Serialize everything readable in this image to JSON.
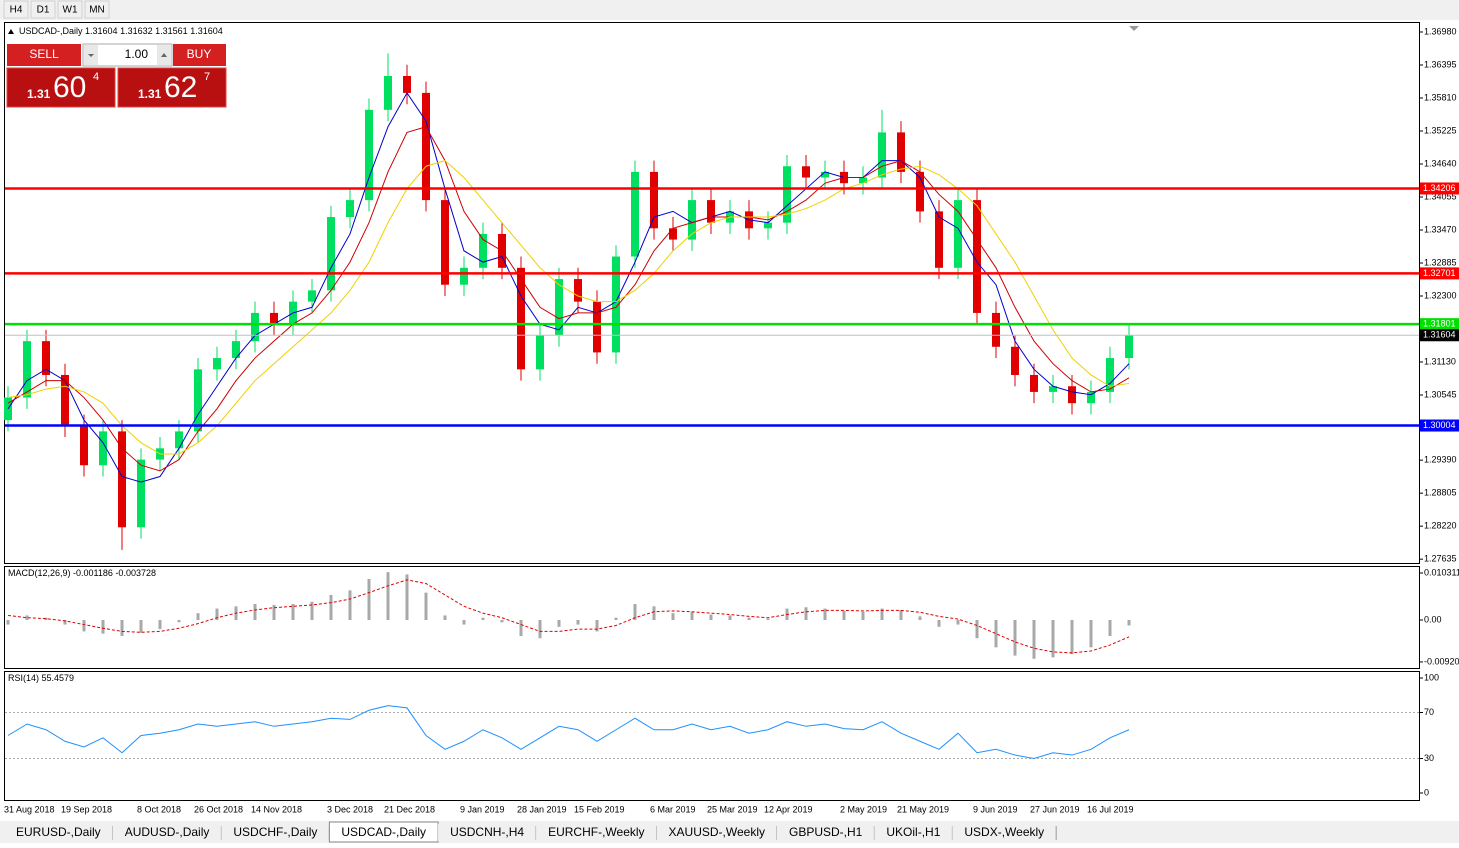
{
  "toolbar": {
    "timeframes": [
      "H4",
      "D1",
      "W1",
      "MN"
    ]
  },
  "trade_panel": {
    "sell": "SELL",
    "lot": "1.00",
    "buy": "BUY",
    "sell_price": {
      "big": "1.31",
      "pips": "60",
      "point": "4"
    },
    "buy_price": {
      "big": "1.31",
      "pips": "62",
      "point": "7"
    }
  },
  "chart_data": [
    {
      "type": "candlestick",
      "title": "USDCAD-,Daily",
      "ohlc_header": [
        1.31604,
        1.31632,
        1.31561,
        1.31604
      ],
      "categories": [
        "31 Aug 2018",
        null,
        null,
        "19 Sep 2018",
        null,
        null,
        null,
        "8 Oct 2018",
        null,
        null,
        "26 Oct 2018",
        null,
        null,
        "14 Nov 2018",
        null,
        null,
        null,
        "3 Dec 2018",
        null,
        null,
        "21 Dec 2018",
        null,
        null,
        null,
        "9 Jan 2019",
        null,
        null,
        "28 Jan 2019",
        null,
        null,
        "15 Feb 2019",
        null,
        null,
        null,
        "6 Mar 2019",
        null,
        null,
        "25 Mar 2019",
        null,
        null,
        "12 Apr 2019",
        null,
        null,
        null,
        "2 May 2019",
        null,
        null,
        "21 May 2019",
        null,
        null,
        null,
        "9 Jun 2019",
        null,
        null,
        "27 Jun 2019",
        null,
        null,
        "16 Jul 2019",
        null,
        null
      ],
      "open": [
        1.301,
        1.305,
        1.315,
        1.309,
        1.3,
        1.293,
        1.299,
        1.282,
        1.294,
        1.296,
        1.299,
        1.31,
        1.312,
        1.315,
        1.32,
        1.318,
        1.322,
        1.324,
        1.337,
        1.34,
        1.356,
        1.362,
        1.359,
        1.34,
        1.325,
        1.328,
        1.334,
        1.328,
        1.31,
        1.316,
        1.326,
        1.322,
        1.313,
        1.33,
        1.345,
        1.335,
        1.333,
        1.34,
        1.336,
        1.338,
        1.335,
        1.336,
        1.346,
        1.344,
        1.345,
        1.343,
        1.344,
        1.352,
        1.345,
        1.338,
        1.328,
        1.34,
        1.32,
        1.314,
        1.309,
        1.306,
        1.307,
        1.304,
        1.306,
        1.312
      ],
      "high": [
        1.307,
        1.317,
        1.317,
        1.311,
        1.302,
        1.301,
        1.301,
        1.296,
        1.298,
        1.301,
        1.312,
        1.314,
        1.317,
        1.322,
        1.322,
        1.324,
        1.326,
        1.339,
        1.342,
        1.358,
        1.366,
        1.364,
        1.361,
        1.342,
        1.33,
        1.336,
        1.336,
        1.33,
        1.318,
        1.328,
        1.328,
        1.324,
        1.332,
        1.347,
        1.347,
        1.337,
        1.342,
        1.342,
        1.34,
        1.34,
        1.338,
        1.348,
        1.348,
        1.347,
        1.347,
        1.346,
        1.356,
        1.354,
        1.347,
        1.34,
        1.342,
        1.342,
        1.322,
        1.316,
        1.311,
        1.309,
        1.309,
        1.308,
        1.314,
        1.318
      ],
      "low": [
        1.299,
        1.303,
        1.307,
        1.298,
        1.291,
        1.291,
        1.278,
        1.28,
        1.292,
        1.294,
        1.297,
        1.308,
        1.31,
        1.313,
        1.316,
        1.316,
        1.32,
        1.322,
        1.335,
        1.338,
        1.354,
        1.357,
        1.338,
        1.323,
        1.323,
        1.326,
        1.326,
        1.308,
        1.308,
        1.314,
        1.32,
        1.311,
        1.311,
        1.328,
        1.333,
        1.331,
        1.331,
        1.334,
        1.334,
        1.333,
        1.333,
        1.334,
        1.342,
        1.342,
        1.341,
        1.341,
        1.342,
        1.343,
        1.336,
        1.326,
        1.326,
        1.318,
        1.312,
        1.307,
        1.304,
        1.304,
        1.302,
        1.302,
        1.304,
        1.31
      ],
      "close": [
        1.305,
        1.315,
        1.309,
        1.3,
        1.293,
        1.299,
        1.282,
        1.294,
        1.296,
        1.299,
        1.31,
        1.312,
        1.315,
        1.32,
        1.318,
        1.322,
        1.324,
        1.337,
        1.34,
        1.356,
        1.362,
        1.359,
        1.34,
        1.325,
        1.328,
        1.334,
        1.328,
        1.31,
        1.316,
        1.326,
        1.322,
        1.313,
        1.33,
        1.345,
        1.335,
        1.333,
        1.34,
        1.336,
        1.338,
        1.335,
        1.336,
        1.346,
        1.344,
        1.345,
        1.343,
        1.344,
        1.352,
        1.345,
        1.338,
        1.328,
        1.34,
        1.32,
        1.314,
        1.309,
        1.306,
        1.307,
        1.304,
        1.306,
        1.312,
        1.316
      ],
      "up_color": "#00e060",
      "down_color": "#e00000",
      "lines": [
        {
          "color": "#0000cd",
          "values": [
            1.303,
            1.308,
            1.31,
            1.308,
            1.301,
            1.297,
            1.291,
            1.29,
            1.291,
            1.296,
            1.302,
            1.307,
            1.312,
            1.316,
            1.318,
            1.32,
            1.321,
            1.328,
            1.334,
            1.344,
            1.353,
            1.359,
            1.354,
            1.342,
            1.331,
            1.329,
            1.33,
            1.323,
            1.318,
            1.317,
            1.321,
            1.32,
            1.322,
            1.329,
            1.337,
            1.338,
            1.336,
            1.337,
            1.338,
            1.3365,
            1.336,
            1.339,
            1.342,
            1.345,
            1.344,
            1.344,
            1.347,
            1.347,
            1.344,
            1.337,
            1.335,
            1.329,
            1.325,
            1.315,
            1.31,
            1.307,
            1.306,
            1.3055,
            1.3075,
            1.311
          ]
        },
        {
          "color": "#cc0000",
          "values": [
            1.304,
            1.306,
            1.308,
            1.308,
            1.305,
            1.301,
            1.296,
            1.293,
            1.292,
            1.294,
            1.299,
            1.303,
            1.308,
            1.312,
            1.315,
            1.318,
            1.32,
            1.324,
            1.329,
            1.336,
            1.345,
            1.352,
            1.353,
            1.347,
            1.338,
            1.333,
            1.331,
            1.326,
            1.321,
            1.319,
            1.32,
            1.32,
            1.321,
            1.325,
            1.331,
            1.335,
            1.336,
            1.337,
            1.337,
            1.337,
            1.3365,
            1.338,
            1.34,
            1.343,
            1.344,
            1.344,
            1.346,
            1.347,
            1.345,
            1.341,
            1.338,
            1.333,
            1.328,
            1.321,
            1.315,
            1.311,
            1.308,
            1.306,
            1.3065,
            1.3085
          ]
        },
        {
          "color": "#f0d000",
          "values": [
            1.305,
            1.3055,
            1.3065,
            1.307,
            1.306,
            1.304,
            1.3,
            1.297,
            1.295,
            1.295,
            1.297,
            1.3,
            1.304,
            1.308,
            1.311,
            1.314,
            1.317,
            1.32,
            1.324,
            1.329,
            1.336,
            1.342,
            1.346,
            1.347,
            1.344,
            1.34,
            1.336,
            1.332,
            1.328,
            1.325,
            1.323,
            1.322,
            1.322,
            1.324,
            1.327,
            1.331,
            1.334,
            1.336,
            1.337,
            1.337,
            1.337,
            1.3375,
            1.3385,
            1.34,
            1.342,
            1.343,
            1.3445,
            1.3455,
            1.346,
            1.3445,
            1.342,
            1.339,
            1.334,
            1.329,
            1.323,
            1.317,
            1.312,
            1.309,
            1.307,
            1.3075
          ]
        }
      ],
      "levels": [
        {
          "value": 1.34206,
          "color": "#ff0000"
        },
        {
          "value": 1.32701,
          "color": "#ff0000"
        },
        {
          "value": 1.31801,
          "color": "#00e000"
        },
        {
          "value": 1.30004,
          "color": "#0000ff"
        }
      ],
      "bid": 1.31604,
      "ylim": [
        1.27567,
        1.37157
      ],
      "yticks": [
        {
          "value": 1.3698,
          "label": "1.36980"
        },
        1.36395,
        {
          "value": 1.3581,
          "label": "1.35810"
        },
        1.35225,
        {
          "value": 1.3464,
          "label": "1.34640"
        },
        1.34055,
        {
          "value": 1.3347,
          "label": "1.33470"
        },
        1.32885,
        {
          "value": 1.323,
          "label": "1.32300"
        },
        {
          "value": 1.3113,
          "label": "1.31130"
        },
        1.30545,
        {
          "value": 1.2939,
          "label": "1.29390"
        },
        1.28805,
        {
          "value": 1.2822,
          "label": "1.28220"
        },
        1.27635
      ]
    },
    {
      "type": "macd",
      "title": "MACD(12,26,9)",
      "readout": [
        -0.001186,
        -0.003728
      ],
      "histogram": [
        -0.001,
        0.001,
        0.0005,
        -0.001,
        -0.0025,
        -0.003,
        -0.0035,
        -0.0028,
        -0.002,
        -0.0005,
        0.0015,
        0.0025,
        0.003,
        0.0035,
        0.0033,
        0.0035,
        0.004,
        0.0055,
        0.0065,
        0.009,
        0.0105,
        0.01,
        0.006,
        0.001,
        -0.001,
        0.0005,
        -0.0005,
        -0.0035,
        -0.004,
        -0.0015,
        -0.001,
        -0.0025,
        0.0005,
        0.0035,
        0.003,
        0.0015,
        0.0018,
        0.0012,
        0.001,
        0.0005,
        0.0003,
        0.0025,
        0.0028,
        0.0025,
        0.002,
        0.0018,
        0.0025,
        0.0022,
        0.0008,
        -0.0015,
        -0.001,
        -0.004,
        -0.006,
        -0.0078,
        -0.0085,
        -0.0082,
        -0.0075,
        -0.006,
        -0.0035,
        -0.0012
      ],
      "signal": [
        0.001,
        0.0005,
        0.0003,
        -0.0002,
        -0.001,
        -0.0018,
        -0.0025,
        -0.0027,
        -0.0025,
        -0.0018,
        -0.0008,
        0.0005,
        0.0015,
        0.0022,
        0.0027,
        0.003,
        0.0033,
        0.0038,
        0.0046,
        0.006,
        0.0075,
        0.0088,
        0.008,
        0.0055,
        0.003,
        0.0015,
        0.0005,
        -0.001,
        -0.0025,
        -0.0025,
        -0.002,
        -0.002,
        -0.0012,
        0.0005,
        0.0018,
        0.002,
        0.0018,
        0.0015,
        0.0012,
        0.0008,
        0.0005,
        0.0012,
        0.0018,
        0.0021,
        0.0021,
        0.002,
        0.0021,
        0.0021,
        0.0017,
        0.0008,
        0.0002,
        -0.0012,
        -0.003,
        -0.0048,
        -0.0062,
        -0.007,
        -0.0072,
        -0.0068,
        -0.0055,
        -0.0037
      ],
      "histogram_color": "#a8a8a8",
      "signal_color": "#e00000",
      "ylim": [
        -0.01053,
        0.011847
      ],
      "yticks": [
        0.010311,
        {
          "value": 0,
          "label": "0.00"
        },
        {
          "value": -0.0092,
          "label": "-0.00920"
        }
      ]
    },
    {
      "type": "rsi",
      "title": "RSI(14)",
      "readout": 55.4579,
      "values": [
        50,
        60,
        55,
        45,
        40,
        48,
        35,
        50,
        52,
        55,
        60,
        58,
        60,
        62,
        58,
        60,
        62,
        65,
        64,
        72,
        76,
        74,
        50,
        38,
        45,
        55,
        48,
        38,
        48,
        58,
        55,
        45,
        55,
        65,
        55,
        55,
        60,
        55,
        58,
        52,
        55,
        62,
        58,
        60,
        56,
        55,
        62,
        52,
        45,
        38,
        52,
        35,
        38,
        33,
        30,
        35,
        33,
        38,
        48,
        55
      ],
      "color": "#1e90ff",
      "levels": [
        70,
        30
      ],
      "ylim": [
        -6.1,
        106.1
      ],
      "yticks": [
        100,
        70,
        30,
        0
      ]
    }
  ],
  "tabs": {
    "items": [
      "EURUSD-,Daily",
      "AUDUSD-,Daily",
      "USDCHF-,Daily",
      "USDCAD-,Daily",
      "USDCNH-,H4",
      "EURCHF-,Weekly",
      "XAUUSD-,Weekly",
      "GBPUSD-,H1",
      "UKOil-,H1",
      "USDX-,Weekly"
    ],
    "active": 3
  }
}
